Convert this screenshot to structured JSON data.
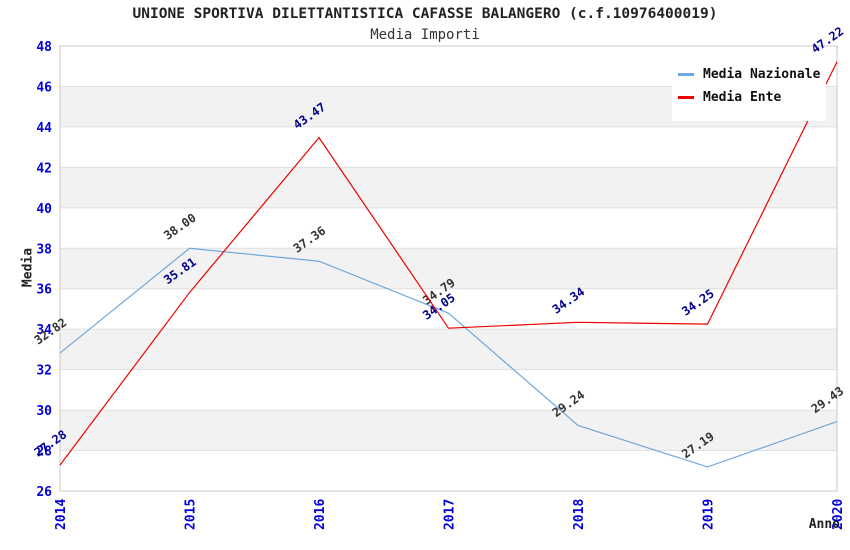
{
  "title": "UNIONE SPORTIVA DILETTANTISTICA CAFASSE BALANGERO (c.f.10976400019)",
  "subtitle": "Media Importi",
  "chart_data": {
    "type": "line",
    "x": [
      2014,
      2015,
      2016,
      2017,
      2018,
      2019,
      2020
    ],
    "xlabel": "Anno",
    "ylabel": "Media",
    "ylim": [
      26,
      48
    ],
    "ytick_step": 2,
    "grid": "horizontal-bands-alternating",
    "legend_position": "top-right",
    "series": [
      {
        "name": "Media Nazionale",
        "color": "#6fa8dc",
        "label_color": "#333333",
        "values": [
          32.82,
          38.0,
          37.36,
          34.79,
          29.24,
          27.19,
          29.43
        ]
      },
      {
        "name": "Media Ente",
        "color": "#ee0000",
        "label_color": "#00008b",
        "values": [
          27.28,
          35.81,
          43.47,
          34.05,
          34.34,
          34.25,
          47.22
        ]
      }
    ]
  },
  "colors": {
    "tick_label": "#0000dd",
    "band_gray": "#f2f2f2",
    "gridline": "#e0e0e0",
    "plot_border": "#c8c8c8"
  }
}
